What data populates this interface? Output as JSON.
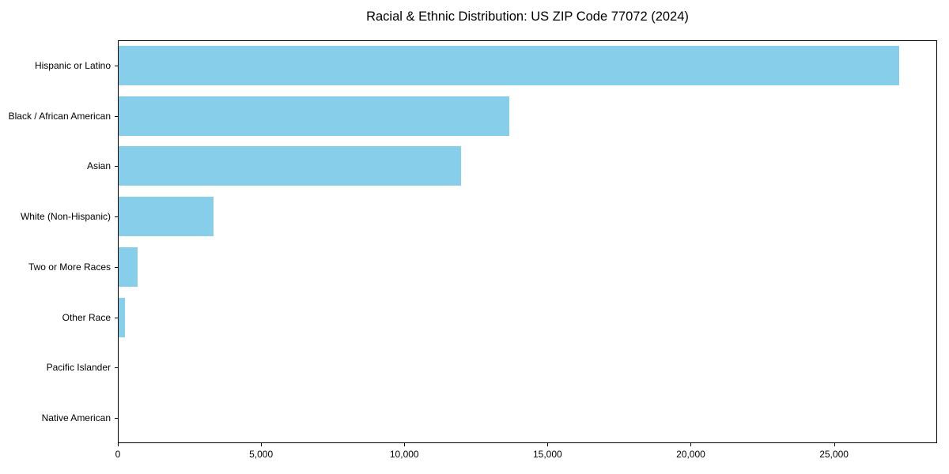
{
  "title": "Racial & Ethnic Distribution: US ZIP Code 77072 (2024)",
  "colors": {
    "bar": "#87CEEB",
    "axis": "#000000",
    "background": "#FFFFFF",
    "text": "#000000"
  },
  "chart_data": {
    "type": "bar",
    "orientation": "horizontal",
    "title": "Racial & Ethnic Distribution: US ZIP Code 77072 (2024)",
    "categories": [
      "Hispanic or Latino",
      "Black / African American",
      "Asian",
      "White (Non-Hispanic)",
      "Two or More Races",
      "Other Race",
      "Pacific Islander",
      "Native American"
    ],
    "values": [
      27250,
      13650,
      11950,
      3320,
      670,
      230,
      0,
      0
    ],
    "xlabel": "",
    "ylabel": "",
    "xlim": [
      0,
      28600
    ],
    "x_ticks": [
      0,
      5000,
      10000,
      15000,
      20000,
      25000
    ],
    "x_tick_labels": [
      "0",
      "5,000",
      "10,000",
      "15,000",
      "20,000",
      "25,000"
    ],
    "bar_color": "#87CEEB",
    "grid": false,
    "legend": null
  }
}
